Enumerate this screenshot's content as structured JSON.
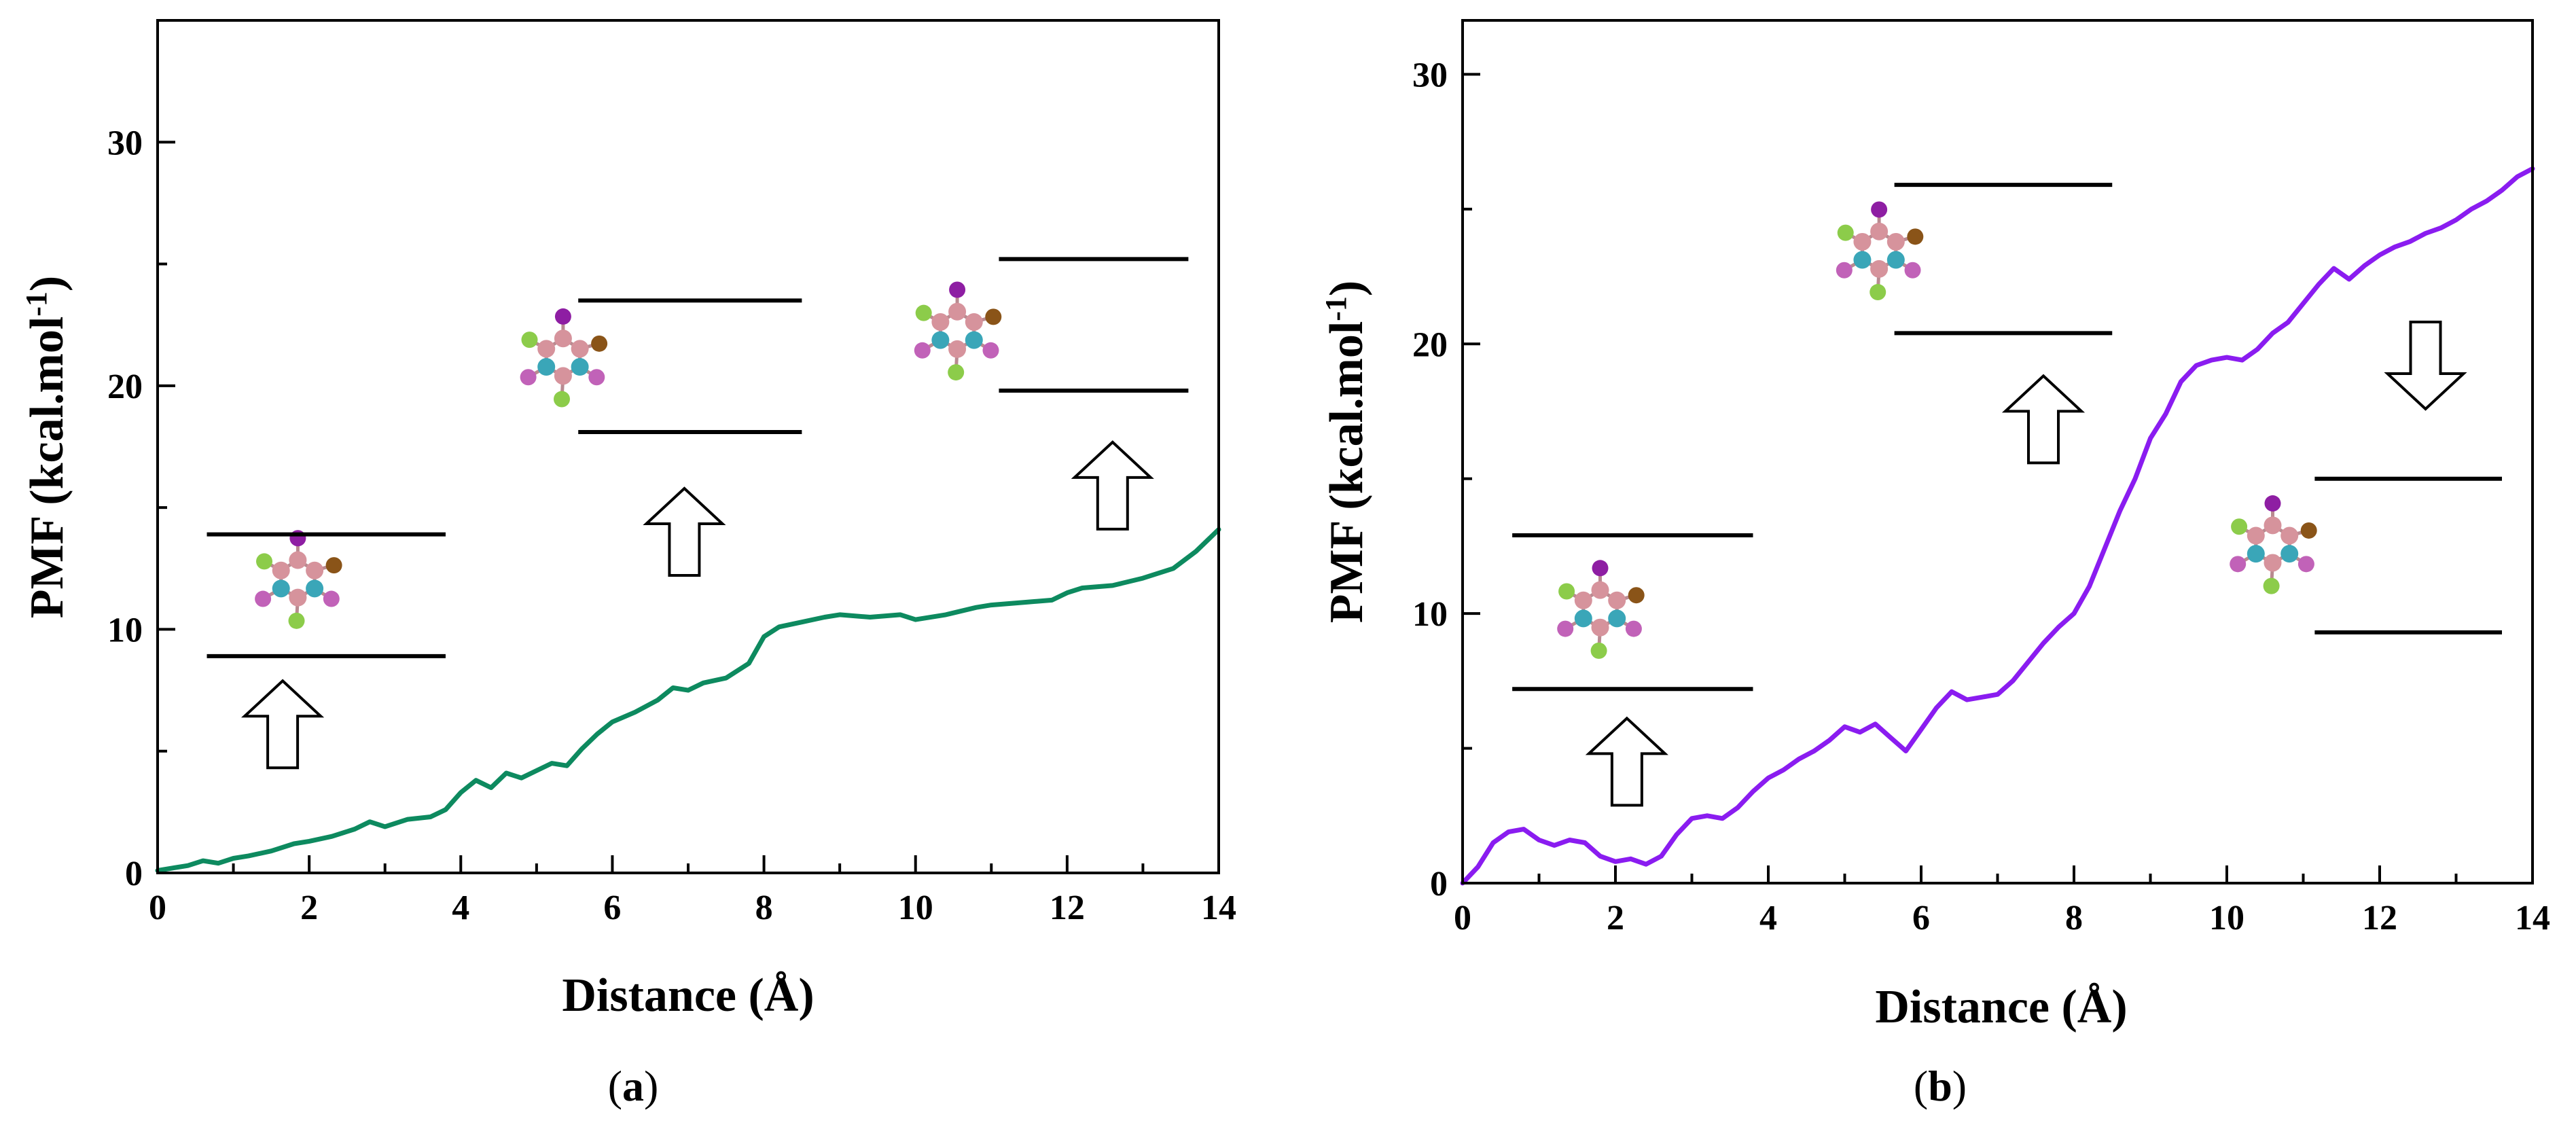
{
  "chart_data": [
    {
      "type": "line",
      "panel_label": "a",
      "xlabel": "Distance (Å)",
      "ylabel_main": "PMF (kcal.mol",
      "ylabel_sup": "-1",
      "ylabel_close": ")",
      "xlim": [
        0,
        14
      ],
      "ylim": [
        0,
        35
      ],
      "xticks": [
        0,
        2,
        4,
        6,
        8,
        10,
        12,
        14
      ],
      "yticks": [
        0,
        10,
        20,
        30
      ],
      "series": [
        {
          "name": "PMF",
          "color": "#0d8a5f",
          "x": [
            0,
            0.4,
            0.6,
            0.8,
            1.0,
            1.2,
            1.5,
            1.8,
            2.0,
            2.3,
            2.6,
            2.8,
            3.0,
            3.3,
            3.6,
            3.8,
            4.0,
            4.2,
            4.4,
            4.6,
            4.8,
            5.0,
            5.2,
            5.4,
            5.6,
            5.8,
            6.0,
            6.3,
            6.6,
            6.8,
            7.0,
            7.2,
            7.5,
            7.8,
            8.0,
            8.2,
            8.5,
            8.8,
            9.0,
            9.4,
            9.8,
            10.0,
            10.4,
            10.8,
            11.0,
            11.4,
            11.8,
            12.0,
            12.2,
            12.6,
            13.0,
            13.4,
            13.7,
            14.0
          ],
          "y": [
            0.1,
            0.3,
            0.5,
            0.4,
            0.6,
            0.7,
            0.9,
            1.2,
            1.3,
            1.5,
            1.8,
            2.1,
            1.9,
            2.2,
            2.3,
            2.6,
            3.3,
            3.8,
            3.5,
            4.1,
            3.9,
            4.2,
            4.5,
            4.4,
            5.1,
            5.7,
            6.2,
            6.6,
            7.1,
            7.6,
            7.5,
            7.8,
            8.0,
            8.6,
            9.7,
            10.1,
            10.3,
            10.5,
            10.6,
            10.5,
            10.6,
            10.4,
            10.6,
            10.9,
            11.0,
            11.1,
            11.2,
            11.5,
            11.7,
            11.8,
            12.1,
            12.5,
            13.2,
            14.1
          ]
        }
      ],
      "annotations": [
        {
          "type": "molecule",
          "x": 1.85,
          "y": 12.1
        },
        {
          "type": "level",
          "x1": 0.65,
          "x2": 3.8,
          "y": 13.9
        },
        {
          "type": "level",
          "x1": 0.65,
          "x2": 3.8,
          "y": 8.9
        },
        {
          "type": "arrow-up",
          "x": 1.65,
          "y": 6.1
        },
        {
          "type": "molecule",
          "x": 5.35,
          "y": 21.2
        },
        {
          "type": "level",
          "x1": 5.55,
          "x2": 8.5,
          "y": 23.5
        },
        {
          "type": "level",
          "x1": 5.55,
          "x2": 8.5,
          "y": 18.1
        },
        {
          "type": "arrow-up",
          "x": 6.95,
          "y": 14.0
        },
        {
          "type": "molecule",
          "x": 10.55,
          "y": 22.3
        },
        {
          "type": "level",
          "x1": 11.1,
          "x2": 13.6,
          "y": 25.2
        },
        {
          "type": "level",
          "x1": 11.1,
          "x2": 13.6,
          "y": 19.8
        },
        {
          "type": "arrow-up",
          "x": 12.6,
          "y": 15.9
        }
      ]
    },
    {
      "type": "line",
      "panel_label": "b",
      "xlabel": "Distance (Å)",
      "ylabel_main": "PMF (kcal.mol",
      "ylabel_sup": "-1",
      "ylabel_close": ")",
      "xlim": [
        0,
        14
      ],
      "ylim": [
        0,
        32
      ],
      "xticks": [
        0,
        2,
        4,
        6,
        8,
        10,
        12,
        14
      ],
      "yticks": [
        0,
        10,
        20,
        30
      ],
      "series": [
        {
          "name": "PMF",
          "color": "#8a1cf0",
          "x": [
            0,
            0.2,
            0.4,
            0.6,
            0.8,
            1.0,
            1.2,
            1.4,
            1.6,
            1.8,
            2.0,
            2.2,
            2.4,
            2.6,
            2.8,
            3.0,
            3.2,
            3.4,
            3.6,
            3.8,
            4.0,
            4.2,
            4.4,
            4.6,
            4.8,
            5.0,
            5.2,
            5.4,
            5.6,
            5.8,
            6.0,
            6.2,
            6.4,
            6.6,
            6.8,
            7.0,
            7.2,
            7.4,
            7.6,
            7.8,
            8.0,
            8.2,
            8.4,
            8.6,
            8.8,
            9.0,
            9.2,
            9.4,
            9.6,
            9.8,
            10.0,
            10.2,
            10.4,
            10.6,
            10.8,
            11.0,
            11.2,
            11.4,
            11.6,
            11.8,
            12.0,
            12.2,
            12.4,
            12.6,
            12.8,
            13.0,
            13.2,
            13.4,
            13.6,
            13.8,
            14.0
          ],
          "y": [
            0,
            0.6,
            1.5,
            1.9,
            2.0,
            1.6,
            1.4,
            1.6,
            1.5,
            1.0,
            0.8,
            0.9,
            0.7,
            1.0,
            1.8,
            2.4,
            2.5,
            2.4,
            2.8,
            3.4,
            3.9,
            4.2,
            4.6,
            4.9,
            5.3,
            5.8,
            5.6,
            5.9,
            5.4,
            4.9,
            5.7,
            6.5,
            7.1,
            6.8,
            6.9,
            7.0,
            7.5,
            8.2,
            8.9,
            9.5,
            10.0,
            11.0,
            12.4,
            13.8,
            15.0,
            16.5,
            17.4,
            18.6,
            19.2,
            19.4,
            19.5,
            19.4,
            19.8,
            20.4,
            20.8,
            21.5,
            22.2,
            22.8,
            22.4,
            22.9,
            23.3,
            23.6,
            23.8,
            24.1,
            24.3,
            24.6,
            25.0,
            25.3,
            25.7,
            26.2,
            26.5
          ]
        }
      ],
      "annotations": [
        {
          "type": "molecule",
          "x": 1.8,
          "y": 10.2
        },
        {
          "type": "level",
          "x1": 0.65,
          "x2": 3.8,
          "y": 12.9
        },
        {
          "type": "level",
          "x1": 0.65,
          "x2": 3.8,
          "y": 7.2
        },
        {
          "type": "arrow-up",
          "x": 2.15,
          "y": 4.5
        },
        {
          "type": "molecule",
          "x": 5.45,
          "y": 23.5
        },
        {
          "type": "level",
          "x1": 5.65,
          "x2": 8.5,
          "y": 25.9
        },
        {
          "type": "level",
          "x1": 5.65,
          "x2": 8.5,
          "y": 20.4
        },
        {
          "type": "arrow-up",
          "x": 7.6,
          "y": 17.2
        },
        {
          "type": "arrow-down",
          "x": 12.6,
          "y": 19.2
        },
        {
          "type": "molecule",
          "x": 10.6,
          "y": 12.6
        },
        {
          "type": "level",
          "x1": 11.15,
          "x2": 13.6,
          "y": 15.0
        },
        {
          "type": "level",
          "x1": 11.15,
          "x2": 13.6,
          "y": 9.3
        }
      ]
    }
  ]
}
